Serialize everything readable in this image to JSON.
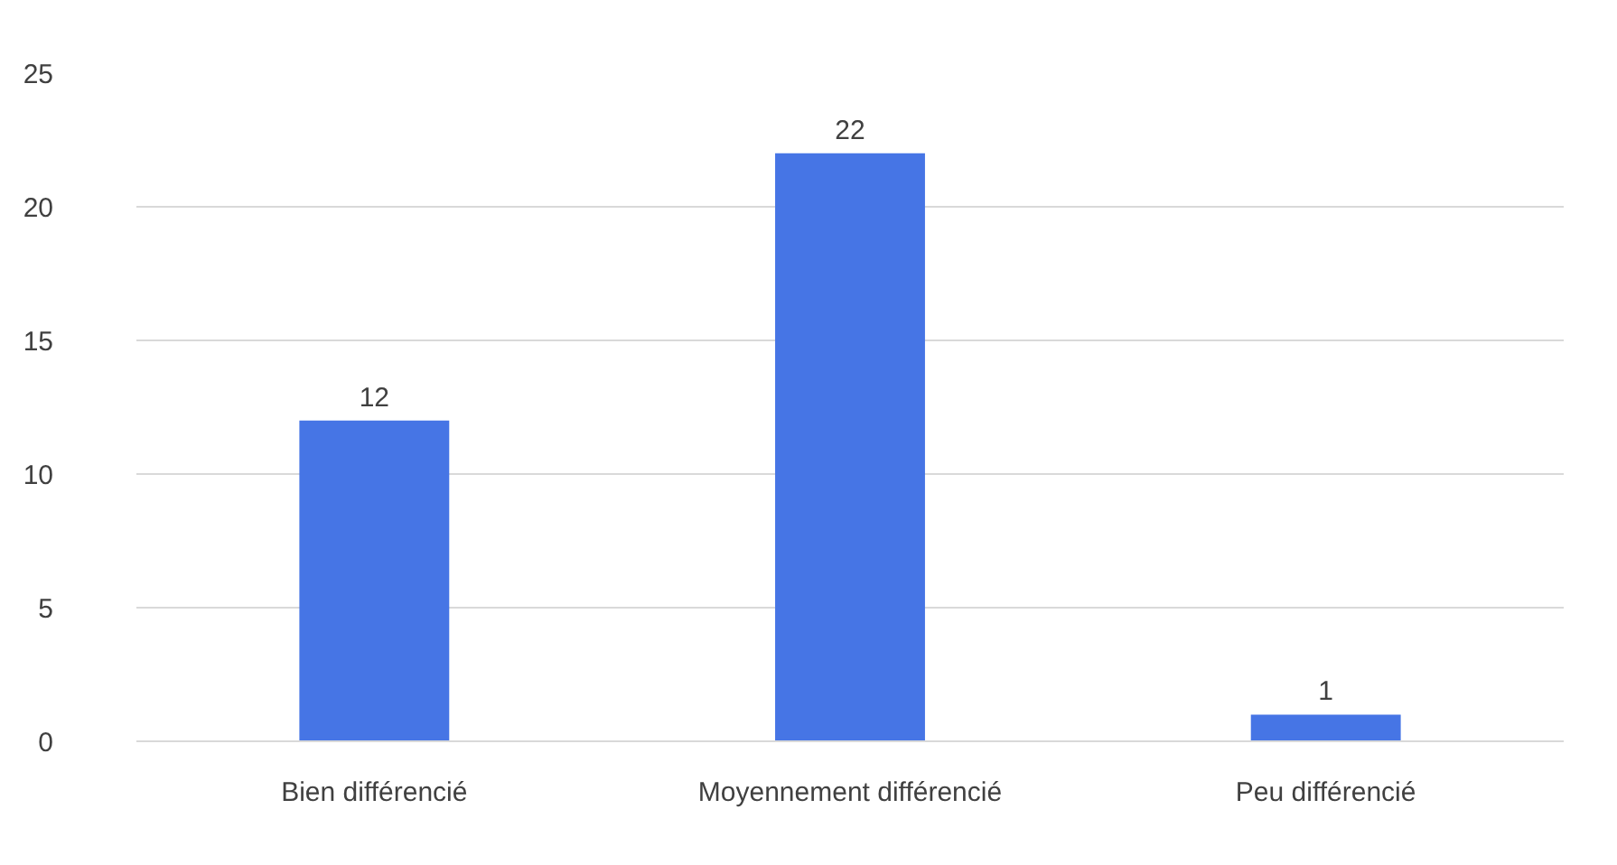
{
  "chart_data": {
    "type": "bar",
    "categories": [
      "Bien différencié",
      "Moyennement différencié",
      "Peu différencié"
    ],
    "values": [
      12,
      22,
      1
    ],
    "color": "#4675e5",
    "ylim": [
      0,
      25
    ],
    "yticks": [
      0,
      5,
      10,
      15,
      20,
      25
    ],
    "grid": "y",
    "data_labels": true
  }
}
